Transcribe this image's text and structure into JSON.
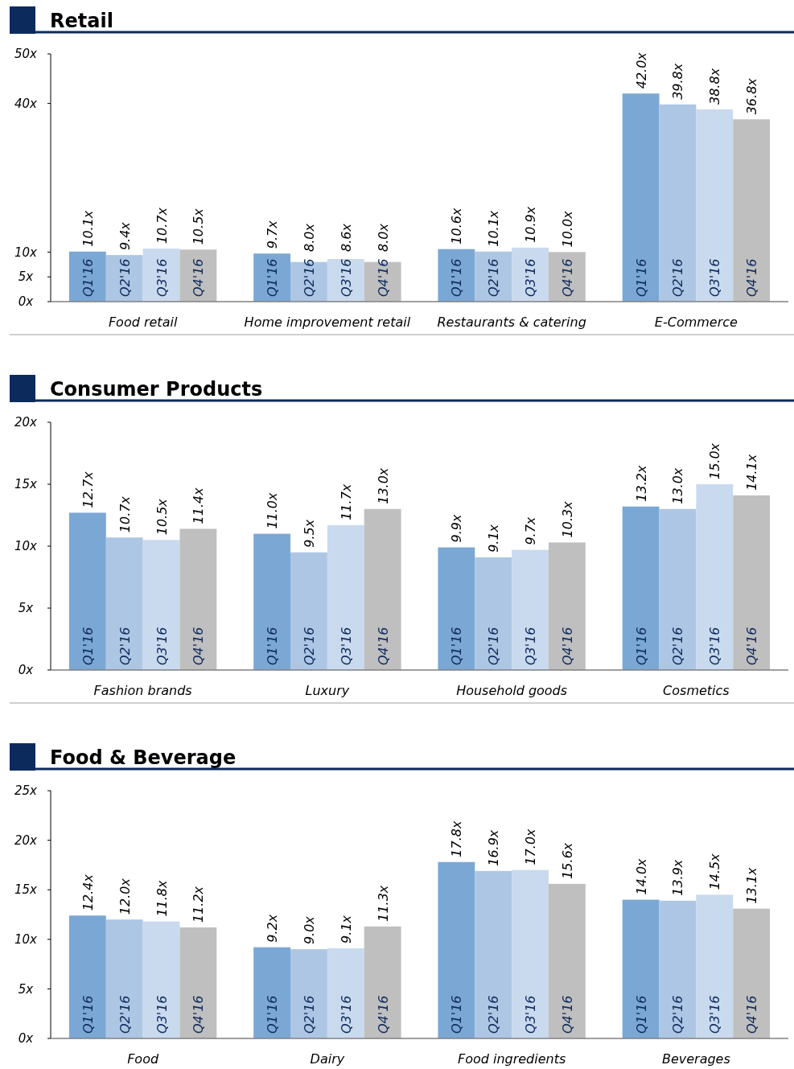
{
  "chart_data": [
    {
      "type": "bar",
      "title": "Retail",
      "categories": [
        "Food retail",
        "Home improvement retail",
        "Restaurants & catering",
        "E-Commerce"
      ],
      "ylim": [
        0,
        50
      ],
      "yticks": [
        {
          "value": 0,
          "label": "0x"
        },
        {
          "value": 5,
          "label": "5x"
        },
        {
          "value": 10,
          "label": "10x"
        },
        {
          "value": 40,
          "label": "40x"
        },
        {
          "value": 50,
          "label": "50x"
        }
      ],
      "series": [
        {
          "name": "Q1'16",
          "color": "#7ba7d4",
          "values": [
            10.1,
            9.7,
            10.6,
            42.0
          ],
          "value_labels": [
            "10.1x",
            "9.7x",
            "10.6x",
            "42.0x"
          ]
        },
        {
          "name": "Q2'16",
          "color": "#adc6e3",
          "values": [
            9.4,
            8.0,
            10.1,
            39.8
          ],
          "value_labels": [
            "9.4x",
            "8.0x",
            "10.1x",
            "39.8x"
          ]
        },
        {
          "name": "Q3'16",
          "color": "#c9daee",
          "values": [
            10.7,
            8.6,
            10.9,
            38.8
          ],
          "value_labels": [
            "10.7x",
            "8.6x",
            "10.9x",
            "38.8x"
          ]
        },
        {
          "name": "Q4'16",
          "color": "#bfbfbf",
          "values": [
            10.5,
            8.0,
            10.0,
            36.8
          ],
          "value_labels": [
            "10.5x",
            "8.0x",
            "10.0x",
            "36.8x"
          ]
        }
      ]
    },
    {
      "type": "bar",
      "title": "Consumer Products",
      "categories": [
        "Fashion brands",
        "Luxury",
        "Household goods",
        "Cosmetics"
      ],
      "ylim": [
        0,
        20
      ],
      "yticks": [
        {
          "value": 0,
          "label": "0x"
        },
        {
          "value": 5,
          "label": "5x"
        },
        {
          "value": 10,
          "label": "10x"
        },
        {
          "value": 15,
          "label": "15x"
        },
        {
          "value": 20,
          "label": "20x"
        }
      ],
      "series": [
        {
          "name": "Q1'16",
          "color": "#7ba7d4",
          "values": [
            12.7,
            11.0,
            9.9,
            13.2
          ],
          "value_labels": [
            "12.7x",
            "11.0x",
            "9.9x",
            "13.2x"
          ]
        },
        {
          "name": "Q2'16",
          "color": "#adc6e3",
          "values": [
            10.7,
            9.5,
            9.1,
            13.0
          ],
          "value_labels": [
            "10.7x",
            "9.5x",
            "9.1x",
            "13.0x"
          ]
        },
        {
          "name": "Q3'16",
          "color": "#c9daee",
          "values": [
            10.5,
            11.7,
            9.7,
            15.0
          ],
          "value_labels": [
            "10.5x",
            "11.7x",
            "9.7x",
            "15.0x"
          ]
        },
        {
          "name": "Q4'16",
          "color": "#bfbfbf",
          "values": [
            11.4,
            13.0,
            10.3,
            14.1
          ],
          "value_labels": [
            "11.4x",
            "13.0x",
            "10.3x",
            "14.1x"
          ]
        }
      ]
    },
    {
      "type": "bar",
      "title": "Food & Beverage",
      "categories": [
        "Food",
        "Dairy",
        "Food ingredients",
        "Beverages"
      ],
      "ylim": [
        0,
        25
      ],
      "yticks": [
        {
          "value": 0,
          "label": "0x"
        },
        {
          "value": 5,
          "label": "5x"
        },
        {
          "value": 10,
          "label": "10x"
        },
        {
          "value": 15,
          "label": "15x"
        },
        {
          "value": 20,
          "label": "20x"
        },
        {
          "value": 25,
          "label": "25x"
        }
      ],
      "series": [
        {
          "name": "Q1'16",
          "color": "#7ba7d4",
          "values": [
            12.4,
            9.2,
            17.8,
            14.0
          ],
          "value_labels": [
            "12.4x",
            "9.2x",
            "17.8x",
            "14.0x"
          ]
        },
        {
          "name": "Q2'16",
          "color": "#adc6e3",
          "values": [
            12.0,
            9.0,
            16.9,
            13.9
          ],
          "value_labels": [
            "12.0x",
            "9.0x",
            "16.9x",
            "13.9x"
          ]
        },
        {
          "name": "Q3'16",
          "color": "#c9daee",
          "values": [
            11.8,
            9.1,
            17.0,
            14.5
          ],
          "value_labels": [
            "11.8x",
            "9.1x",
            "17.0x",
            "14.5x"
          ]
        },
        {
          "name": "Q4'16",
          "color": "#bfbfbf",
          "values": [
            11.2,
            11.3,
            15.6,
            13.1
          ],
          "value_labels": [
            "11.2x",
            "11.3x",
            "15.6x",
            "13.1x"
          ]
        }
      ]
    }
  ]
}
